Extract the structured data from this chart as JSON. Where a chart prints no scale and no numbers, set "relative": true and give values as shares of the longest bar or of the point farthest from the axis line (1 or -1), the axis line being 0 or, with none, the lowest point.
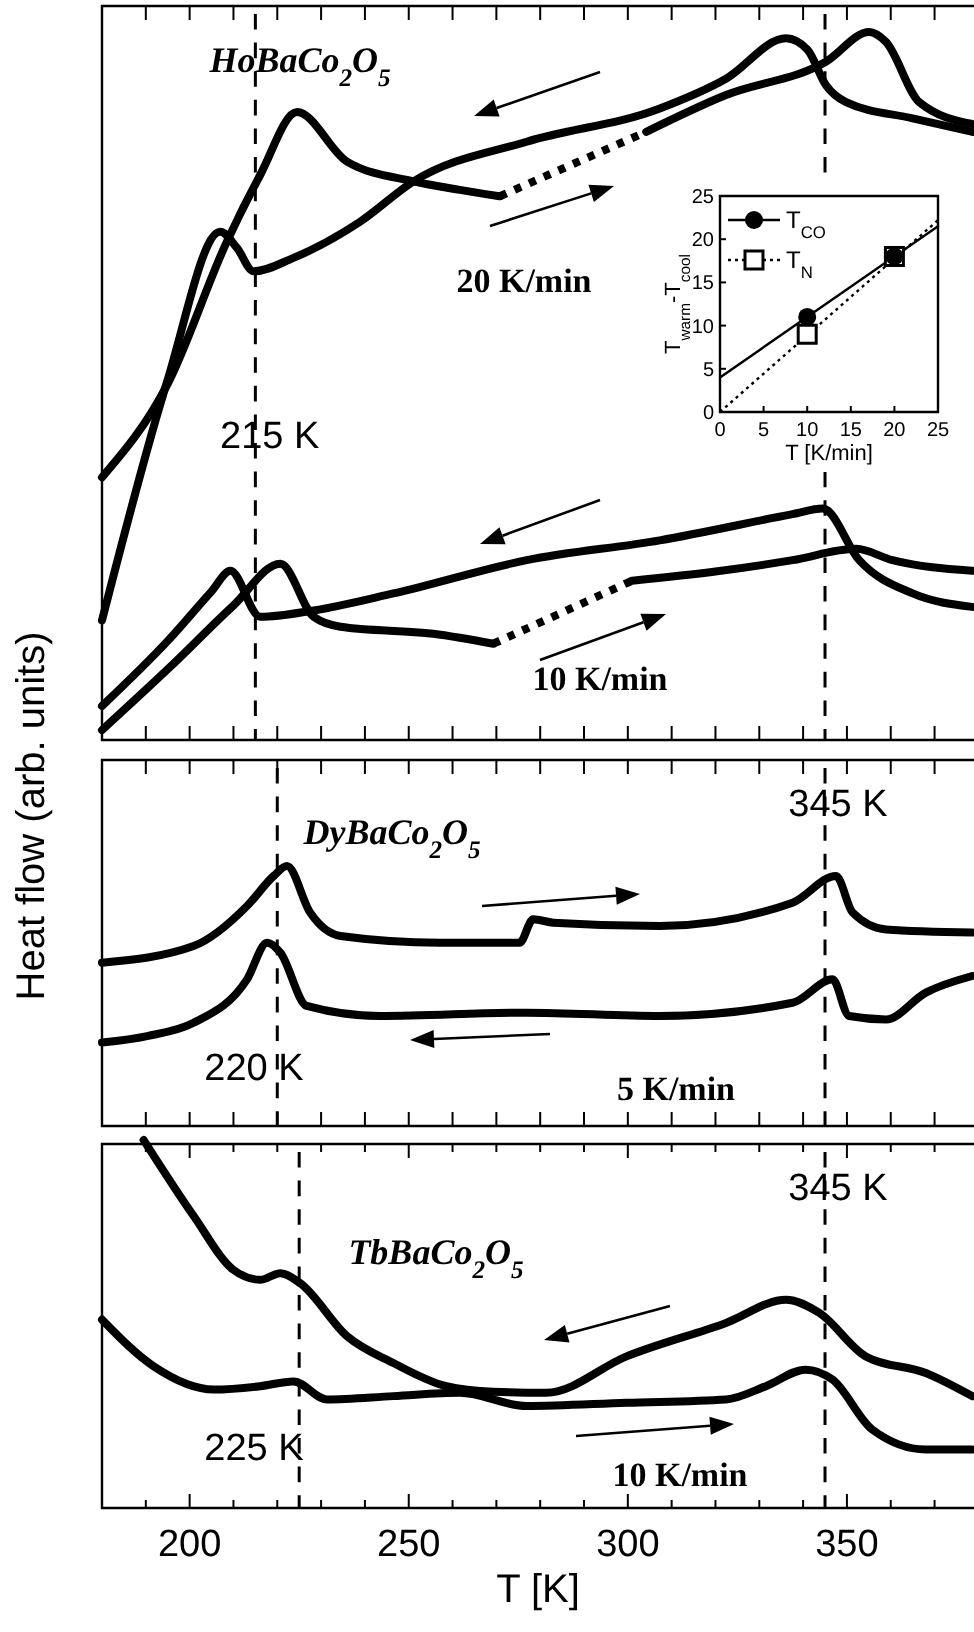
{
  "chart_data": [
    {
      "type": "line",
      "relative": true,
      "xlim": [
        180,
        379
      ],
      "tick_labels": false,
      "xticks": [
        190,
        200,
        210,
        220,
        230,
        240,
        250,
        260,
        270,
        280,
        290,
        300,
        310,
        320,
        330,
        340,
        350,
        360,
        370
      ],
      "annotations": [
        "HoBaCo$_{2}$O$_{5}$",
        "20 K/min",
        "10 K/min"
      ],
      "ref_lines": [
        {
          "axis": "x",
          "value": 215,
          "label": "215 K",
          "line_style": "dashed",
          "color": "#000000"
        },
        {
          "axis": "x",
          "value": 345,
          "label": null,
          "line_style": "dashed",
          "color": "#000000"
        }
      ],
      "series": [
        {
          "color": "#000000",
          "line_style": "solid",
          "x": [
            180,
            194.9,
            208.5,
            216.1,
            224.5,
            235.9,
            251.1,
            261.7,
            270.8
          ],
          "values": [
            0.371,
            0.502,
            0.704,
            0.798,
            0.887,
            0.817,
            0.789,
            0.777,
            0.768
          ]
        },
        {
          "color": "#000000",
          "line_style": "dotted",
          "x": [
            270.8,
            304.2
          ],
          "values": [
            0.768,
            0.859
          ]
        },
        {
          "color": "#000000",
          "line_style": "solid",
          "x": [
            304.2,
            322.4,
            345.2,
            355.1,
            358.9,
            366.5,
            378.6
          ],
          "values": [
            0.859,
            0.911,
            0.958,
            1.0,
            0.986,
            0.901,
            0.87
          ]
        },
        {
          "color": "#000000",
          "line_style": "solid",
          "x": [
            180,
            194.9,
            207,
            210.8,
            214.6,
            223.7,
            238.9,
            251.1,
            276.9,
            307.3,
            322.4,
            336.1,
            341,
            345.2,
            349.8,
            365,
            378.6
          ],
          "values": [
            0.169,
            0.507,
            0.718,
            0.695,
            0.662,
            0.681,
            0.732,
            0.789,
            0.845,
            0.892,
            0.934,
            0.991,
            0.975,
            0.925,
            0.901,
            0.878,
            0.859
          ]
        },
        {
          "color": "#000000",
          "line_style": "solid",
          "x": [
            180,
            195,
            205,
            209.3,
            216.1,
            228.3,
            246.5,
            276.9,
            307.3,
            337.6,
            344.5,
            352.8,
            365,
            378.6
          ],
          "values": [
            0.048,
            0.14,
            0.21,
            0.239,
            0.174,
            0.183,
            0.207,
            0.254,
            0.282,
            0.319,
            0.327,
            0.254,
            0.207,
            0.188
          ]
        },
        {
          "color": "#000000",
          "line_style": "solid",
          "x": [
            180,
            195,
            210,
            220.7,
            228.3,
            234.4,
            255.6,
            269.3
          ],
          "values": [
            0.014,
            0.1,
            0.19,
            0.249,
            0.174,
            0.16,
            0.15,
            0.136
          ]
        },
        {
          "color": "#000000",
          "line_style": "dotted",
          "x": [
            269.3,
            301
          ],
          "values": [
            0.136,
            0.225
          ]
        },
        {
          "color": "#000000",
          "line_style": "solid",
          "x": [
            301,
            320,
            337.6,
            352.1,
            360.4,
            378.6
          ],
          "values": [
            0.225,
            0.238,
            0.254,
            0.27,
            0.254,
            0.239
          ]
        }
      ]
    },
    {
      "type": "line",
      "xlim": [
        0,
        25
      ],
      "ylim": [
        0,
        25
      ],
      "xticks": [
        0,
        5,
        10,
        15,
        20,
        25
      ],
      "yticks": [
        0,
        5,
        10,
        15,
        20,
        25
      ],
      "xlabel": "T [K/min]",
      "ylabel": "T$_{warm}$-T$_{cool}$",
      "legend": "top left",
      "series": [
        {
          "name": "T$_{CO}$",
          "type": "scatter",
          "marker": "circle",
          "line_style": "solid",
          "color": "#000000",
          "x": [
            10,
            20
          ],
          "values": [
            11,
            18
          ]
        },
        {
          "name": "T$_{N}$",
          "type": "scatter",
          "marker": "square",
          "line_style": "dotted",
          "color": "#000000",
          "x": [
            10,
            20
          ],
          "values": [
            9,
            18
          ]
        },
        {
          "line_style": "solid",
          "color": "#000000",
          "x": [
            0,
            25
          ],
          "values": [
            4,
            21.5
          ]
        },
        {
          "line_style": "dotted",
          "color": "#000000",
          "x": [
            0,
            25
          ],
          "values": [
            0,
            22.2
          ]
        }
      ]
    },
    {
      "type": "line",
      "relative": true,
      "xlim": [
        180,
        379
      ],
      "tick_labels": false,
      "ylabel": "Heat flow  (arb. units)",
      "xticks": [
        190,
        200,
        210,
        220,
        230,
        240,
        250,
        260,
        270,
        280,
        290,
        300,
        310,
        320,
        330,
        340,
        350,
        360,
        370
      ],
      "annotations": [
        "DyBaCo$_{2}$O$_{5}$",
        "5 K/min"
      ],
      "ref_lines": [
        {
          "axis": "x",
          "value": 220,
          "label": "220 K",
          "line_style": "dashed",
          "color": "#000000"
        },
        {
          "axis": "x",
          "value": 345,
          "label": "345 K",
          "line_style": "dashed",
          "color": "#000000"
        }
      ],
      "series": [
        {
          "color": "#000000",
          "line_style": "solid",
          "x": [
            180,
            200.9,
            213.1,
            219.2,
            222.2,
            227.5,
            234.4,
            257.1,
            275.3,
            278.4,
            283,
            307.3,
            337.6,
            347.5,
            351.3,
            358.9,
            378.6
          ],
          "values": [
            0.628,
            0.692,
            0.846,
            0.962,
            1.0,
            0.821,
            0.731,
            0.705,
            0.705,
            0.795,
            0.782,
            0.769,
            0.859,
            0.962,
            0.821,
            0.756,
            0.744
          ]
        },
        {
          "color": "#000000",
          "line_style": "solid",
          "x": [
            180,
            190.3,
            200.9,
            213.1,
            217.7,
            220.7,
            226.7,
            243.4,
            276.9,
            307.3,
            337.6,
            346.7,
            350.5,
            358.9,
            368,
            378.6
          ],
          "values": [
            0.321,
            0.346,
            0.397,
            0.564,
            0.705,
            0.667,
            0.462,
            0.423,
            0.436,
            0.423,
            0.474,
            0.564,
            0.423,
            0.41,
            0.513,
            0.577
          ]
        }
      ]
    },
    {
      "type": "line",
      "relative": true,
      "xlim": [
        180,
        379
      ],
      "tick_labels": "x",
      "xlabel": "T [K]",
      "xticks": [
        {
          "value": 190,
          "label": null
        },
        200,
        {
          "value": 210,
          "label": null
        },
        {
          "value": 220,
          "label": null
        },
        {
          "value": 230,
          "label": null
        },
        {
          "value": 240,
          "label": null
        },
        250,
        {
          "value": 260,
          "label": null
        },
        {
          "value": 270,
          "label": null
        },
        {
          "value": 280,
          "label": null
        },
        {
          "value": 290,
          "label": null
        },
        300,
        {
          "value": 310,
          "label": null
        },
        {
          "value": 320,
          "label": null
        },
        {
          "value": 330,
          "label": null
        },
        {
          "value": 340,
          "label": null
        },
        350,
        {
          "value": 360,
          "label": null
        },
        {
          "value": 370,
          "label": null
        }
      ],
      "annotations": [
        "TbBaCo$_{2}$O$_{5}$",
        "10 K/min"
      ],
      "ref_lines": [
        {
          "axis": "x",
          "value": 225,
          "label": "225 K",
          "line_style": "dashed",
          "color": "#000000"
        },
        {
          "axis": "x",
          "value": 345,
          "label": "345 K",
          "line_style": "dashed",
          "color": "#000000"
        }
      ],
      "series": [
        {
          "color": "#000000",
          "line_style": "solid",
          "x": [
            189.5,
            201,
            210,
            216.1,
            220.7,
            225.2,
            235.9,
            246.5,
            258.6,
            269.3,
            281.4,
            299.7,
            322.4,
            336.1,
            343.7,
            354.3,
            368,
            378.6
          ],
          "values": [
            1.0,
            0.792,
            0.647,
            0.62,
            0.638,
            0.611,
            0.467,
            0.394,
            0.331,
            0.316,
            0.313,
            0.412,
            0.503,
            0.566,
            0.53,
            0.412,
            0.367,
            0.304
          ]
        },
        {
          "color": "#000000",
          "line_style": "solid",
          "x": [
            180,
            191.8,
            205.5,
            216.1,
            223.7,
            231.3,
            246.5,
            261.7,
            276.9,
            299.7,
            322.4,
            331.5,
            340.6,
            346.7,
            355.8,
            368,
            378.6
          ],
          "values": [
            0.512,
            0.385,
            0.322,
            0.331,
            0.344,
            0.295,
            0.304,
            0.313,
            0.277,
            0.286,
            0.295,
            0.331,
            0.376,
            0.349,
            0.213,
            0.159,
            0.159
          ]
        }
      ]
    }
  ]
}
